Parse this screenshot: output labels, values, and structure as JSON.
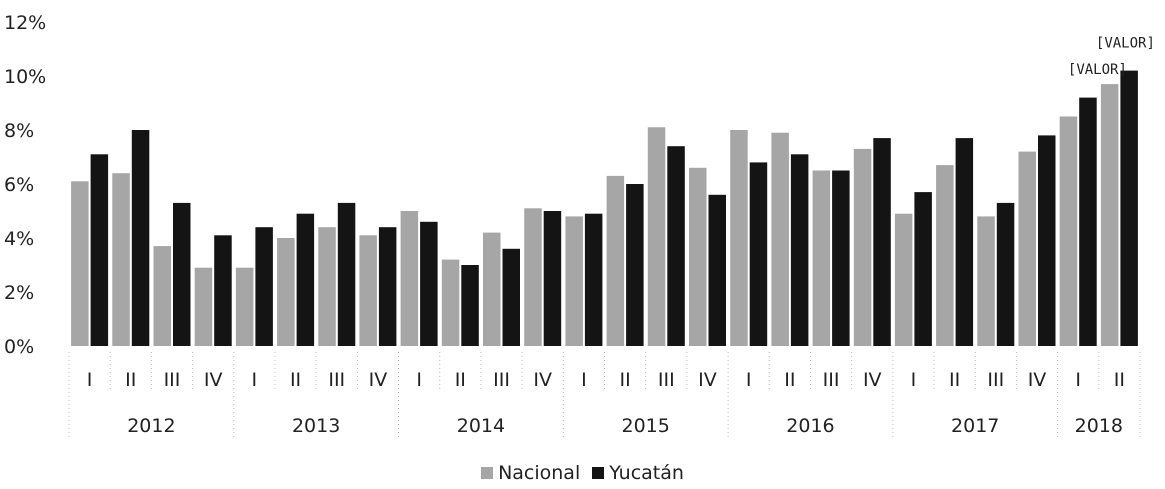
{
  "chart_data": {
    "type": "bar",
    "title": "",
    "xlabel": "",
    "ylabel": "",
    "ylim": [
      0,
      12
    ],
    "yticks": [
      "0%",
      "2%",
      "4%",
      "6%",
      "8%",
      "10%",
      "12%"
    ],
    "categories": [
      "I",
      "II",
      "III",
      "IV",
      "I",
      "II",
      "III",
      "IV",
      "I",
      "II",
      "III",
      "IV",
      "I",
      "II",
      "III",
      "IV",
      "I",
      "II",
      "III",
      "IV",
      "I",
      "II",
      "III",
      "IV",
      "I",
      "II"
    ],
    "year_groups": [
      {
        "label": "2012",
        "count": 4
      },
      {
        "label": "2013",
        "count": 4
      },
      {
        "label": "2014",
        "count": 4
      },
      {
        "label": "2015",
        "count": 4
      },
      {
        "label": "2016",
        "count": 4
      },
      {
        "label": "2017",
        "count": 4
      },
      {
        "label": "2018",
        "count": 2
      }
    ],
    "series": [
      {
        "name": "Nacional",
        "color": "#a6a6a6",
        "values": [
          6.1,
          6.4,
          3.7,
          2.9,
          2.9,
          4.0,
          4.4,
          4.1,
          5.0,
          3.2,
          4.2,
          5.1,
          4.8,
          6.3,
          8.1,
          6.6,
          8.0,
          7.9,
          6.5,
          7.3,
          4.9,
          6.7,
          4.8,
          7.2,
          8.5,
          9.7
        ]
      },
      {
        "name": "Yucatán",
        "color": "#141414",
        "values": [
          7.1,
          8.0,
          5.3,
          4.1,
          4.4,
          4.9,
          5.3,
          4.4,
          4.6,
          3.0,
          3.6,
          5.0,
          4.9,
          6.0,
          7.4,
          5.6,
          6.8,
          7.1,
          6.5,
          7.7,
          5.7,
          7.7,
          5.3,
          7.8,
          9.2,
          10.2
        ]
      }
    ],
    "data_labels": [
      {
        "series": 0,
        "index": 25,
        "text": "[VALOR]"
      },
      {
        "series": 1,
        "index": 25,
        "text": "[VALOR]"
      }
    ],
    "legend_position": "bottom",
    "grid": false
  }
}
